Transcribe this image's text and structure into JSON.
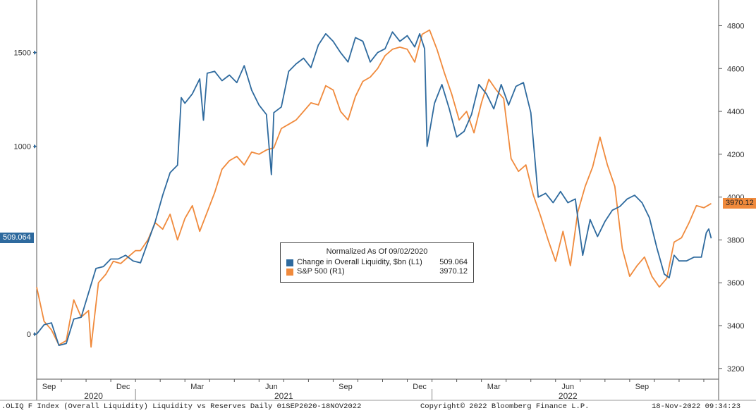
{
  "chart_data": {
    "type": "line",
    "title": "Normalized As Of 09/02/2020",
    "x_range": [
      "2020-09-01",
      "2022-11-18"
    ],
    "left_axis": {
      "range": [
        -240,
        1780
      ],
      "ticks": [
        0,
        1000,
        1500
      ]
    },
    "right_axis": {
      "range": [
        3150,
        4920
      ],
      "ticks": [
        3200,
        3400,
        3600,
        3800,
        4000,
        4200,
        4400,
        4600,
        4800
      ]
    },
    "months": [
      {
        "label": "Sep",
        "t": 0.5
      },
      {
        "label": "Dec",
        "t": 3.5
      },
      {
        "label": "Mar",
        "t": 6.5
      },
      {
        "label": "Jun",
        "t": 9.5
      },
      {
        "label": "Sep",
        "t": 12.5
      },
      {
        "label": "Dec",
        "t": 15.5
      },
      {
        "label": "Mar",
        "t": 18.5
      },
      {
        "label": "Jun",
        "t": 21.5
      },
      {
        "label": "Sep",
        "t": 24.5
      }
    ],
    "years": [
      {
        "label": "2020",
        "t": 2.3
      },
      {
        "label": "2021",
        "t": 10.0
      },
      {
        "label": "2022",
        "t": 21.5
      }
    ],
    "year_dividers": [
      4.0,
      16.0
    ],
    "series": [
      {
        "name": "Change in Overall Liquidity, $bn (L1)",
        "axis": "left",
        "color": "#2e6a9e",
        "last_value": "509.064",
        "points": [
          [
            0,
            0
          ],
          [
            0.3,
            50
          ],
          [
            0.6,
            60
          ],
          [
            0.9,
            -60
          ],
          [
            1.2,
            -50
          ],
          [
            1.5,
            80
          ],
          [
            1.8,
            90
          ],
          [
            2.1,
            220
          ],
          [
            2.4,
            350
          ],
          [
            2.7,
            360
          ],
          [
            3.0,
            400
          ],
          [
            3.3,
            400
          ],
          [
            3.6,
            420
          ],
          [
            3.9,
            390
          ],
          [
            4.2,
            380
          ],
          [
            4.5,
            490
          ],
          [
            4.8,
            600
          ],
          [
            5.1,
            740
          ],
          [
            5.4,
            860
          ],
          [
            5.7,
            900
          ],
          [
            5.85,
            1260
          ],
          [
            6.0,
            1230
          ],
          [
            6.3,
            1280
          ],
          [
            6.6,
            1360
          ],
          [
            6.75,
            1140
          ],
          [
            6.9,
            1390
          ],
          [
            7.2,
            1400
          ],
          [
            7.5,
            1350
          ],
          [
            7.8,
            1380
          ],
          [
            8.1,
            1340
          ],
          [
            8.4,
            1430
          ],
          [
            8.7,
            1300
          ],
          [
            9.0,
            1220
          ],
          [
            9.3,
            1170
          ],
          [
            9.5,
            850
          ],
          [
            9.6,
            1180
          ],
          [
            9.9,
            1210
          ],
          [
            10.2,
            1400
          ],
          [
            10.5,
            1440
          ],
          [
            10.8,
            1470
          ],
          [
            11.1,
            1420
          ],
          [
            11.4,
            1540
          ],
          [
            11.7,
            1600
          ],
          [
            12.0,
            1560
          ],
          [
            12.3,
            1500
          ],
          [
            12.6,
            1450
          ],
          [
            12.9,
            1580
          ],
          [
            13.2,
            1560
          ],
          [
            13.5,
            1450
          ],
          [
            13.8,
            1500
          ],
          [
            14.1,
            1520
          ],
          [
            14.4,
            1610
          ],
          [
            14.7,
            1560
          ],
          [
            15.0,
            1590
          ],
          [
            15.3,
            1530
          ],
          [
            15.5,
            1600
          ],
          [
            15.7,
            1520
          ],
          [
            15.8,
            1000
          ],
          [
            16.1,
            1230
          ],
          [
            16.4,
            1330
          ],
          [
            16.7,
            1200
          ],
          [
            17.0,
            1050
          ],
          [
            17.3,
            1080
          ],
          [
            17.6,
            1170
          ],
          [
            17.9,
            1330
          ],
          [
            18.2,
            1280
          ],
          [
            18.5,
            1200
          ],
          [
            18.8,
            1330
          ],
          [
            19.1,
            1220
          ],
          [
            19.4,
            1320
          ],
          [
            19.7,
            1340
          ],
          [
            20.0,
            1180
          ],
          [
            20.3,
            730
          ],
          [
            20.6,
            750
          ],
          [
            20.9,
            700
          ],
          [
            21.2,
            760
          ],
          [
            21.5,
            700
          ],
          [
            21.8,
            720
          ],
          [
            22.1,
            420
          ],
          [
            22.4,
            610
          ],
          [
            22.7,
            520
          ],
          [
            23.0,
            600
          ],
          [
            23.3,
            660
          ],
          [
            23.6,
            680
          ],
          [
            23.9,
            720
          ],
          [
            24.2,
            740
          ],
          [
            24.5,
            700
          ],
          [
            24.8,
            620
          ],
          [
            25.1,
            460
          ],
          [
            25.4,
            320
          ],
          [
            25.6,
            300
          ],
          [
            25.8,
            420
          ],
          [
            26.0,
            390
          ],
          [
            26.3,
            390
          ],
          [
            26.6,
            410
          ],
          [
            26.9,
            410
          ],
          [
            27.1,
            540
          ],
          [
            27.2,
            560
          ],
          [
            27.3,
            510
          ]
        ]
      },
      {
        "name": "S&P 500 (R1)",
        "axis": "right",
        "color": "#f08a3c",
        "last_value": "3970.12",
        "points": [
          [
            0,
            3580
          ],
          [
            0.3,
            3420
          ],
          [
            0.6,
            3380
          ],
          [
            0.9,
            3310
          ],
          [
            1.2,
            3330
          ],
          [
            1.5,
            3520
          ],
          [
            1.8,
            3440
          ],
          [
            2.1,
            3470
          ],
          [
            2.2,
            3300
          ],
          [
            2.5,
            3600
          ],
          [
            2.8,
            3640
          ],
          [
            3.1,
            3700
          ],
          [
            3.4,
            3690
          ],
          [
            3.7,
            3720
          ],
          [
            4.0,
            3750
          ],
          [
            4.2,
            3750
          ],
          [
            4.5,
            3800
          ],
          [
            4.8,
            3880
          ],
          [
            5.1,
            3850
          ],
          [
            5.4,
            3920
          ],
          [
            5.7,
            3800
          ],
          [
            6.0,
            3900
          ],
          [
            6.3,
            3960
          ],
          [
            6.6,
            3840
          ],
          [
            6.9,
            3930
          ],
          [
            7.2,
            4020
          ],
          [
            7.5,
            4130
          ],
          [
            7.8,
            4170
          ],
          [
            8.1,
            4190
          ],
          [
            8.4,
            4150
          ],
          [
            8.7,
            4210
          ],
          [
            9.0,
            4200
          ],
          [
            9.3,
            4220
          ],
          [
            9.6,
            4230
          ],
          [
            9.9,
            4320
          ],
          [
            10.2,
            4340
          ],
          [
            10.5,
            4360
          ],
          [
            10.8,
            4400
          ],
          [
            11.1,
            4440
          ],
          [
            11.4,
            4430
          ],
          [
            11.7,
            4520
          ],
          [
            12.0,
            4500
          ],
          [
            12.3,
            4400
          ],
          [
            12.6,
            4360
          ],
          [
            12.9,
            4470
          ],
          [
            13.2,
            4540
          ],
          [
            13.5,
            4560
          ],
          [
            13.8,
            4600
          ],
          [
            14.1,
            4660
          ],
          [
            14.4,
            4690
          ],
          [
            14.7,
            4700
          ],
          [
            15.0,
            4690
          ],
          [
            15.3,
            4630
          ],
          [
            15.6,
            4760
          ],
          [
            15.9,
            4780
          ],
          [
            16.2,
            4690
          ],
          [
            16.5,
            4580
          ],
          [
            16.8,
            4480
          ],
          [
            17.1,
            4360
          ],
          [
            17.4,
            4400
          ],
          [
            17.7,
            4300
          ],
          [
            18.0,
            4440
          ],
          [
            18.3,
            4550
          ],
          [
            18.6,
            4500
          ],
          [
            18.9,
            4460
          ],
          [
            19.2,
            4180
          ],
          [
            19.5,
            4120
          ],
          [
            19.8,
            4150
          ],
          [
            20.1,
            4010
          ],
          [
            20.4,
            3910
          ],
          [
            20.7,
            3800
          ],
          [
            21.0,
            3700
          ],
          [
            21.3,
            3840
          ],
          [
            21.6,
            3680
          ],
          [
            21.9,
            3930
          ],
          [
            22.2,
            4050
          ],
          [
            22.5,
            4140
          ],
          [
            22.8,
            4280
          ],
          [
            23.1,
            4150
          ],
          [
            23.4,
            4050
          ],
          [
            23.7,
            3760
          ],
          [
            24.0,
            3630
          ],
          [
            24.3,
            3680
          ],
          [
            24.6,
            3720
          ],
          [
            24.9,
            3630
          ],
          [
            25.2,
            3580
          ],
          [
            25.5,
            3620
          ],
          [
            25.8,
            3790
          ],
          [
            26.1,
            3810
          ],
          [
            26.4,
            3880
          ],
          [
            26.7,
            3960
          ],
          [
            27.0,
            3950
          ],
          [
            27.3,
            3970
          ]
        ]
      }
    ]
  },
  "footer": {
    "left": ".OLIQ F Index (Overall Liquidity) Liquidity vs Reserves  Daily 01SEP2020-18NOV2022",
    "center": "Copyright© 2022 Bloomberg Finance L.P.",
    "right": "18-Nov-2022 09:34:23"
  },
  "legend": {
    "title": "Normalized As Of 09/02/2020",
    "items": [
      {
        "name": "Change in Overall Liquidity, $bn (L1)",
        "value": "509.064",
        "color": "#2e6a9e"
      },
      {
        "name": "S&P 500 (R1)",
        "value": "3970.12",
        "color": "#f08a3c"
      }
    ]
  },
  "flags": {
    "left_last": "509.064",
    "right_last": "3970.12"
  }
}
